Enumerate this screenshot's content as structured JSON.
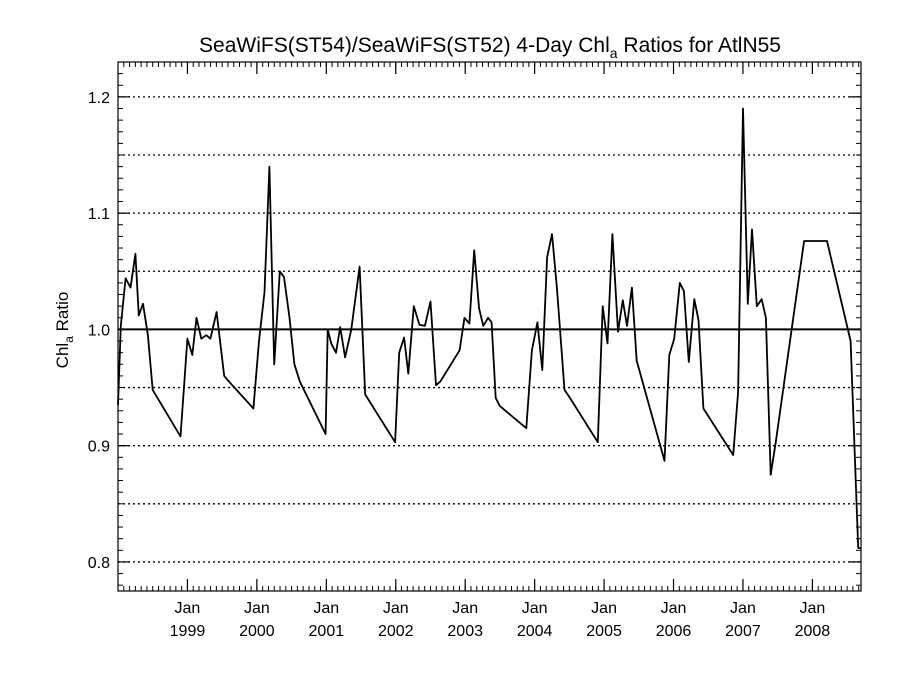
{
  "chart_data": {
    "type": "line",
    "title": {
      "before": "SeaWiFS(ST54)/SeaWiFS(ST52) 4-Day Chl",
      "subscript": "a",
      "after": " Ratios for AtlN55"
    },
    "ylabel": {
      "main": "Chl",
      "subscript": "a",
      "after": " Ratio"
    },
    "xlim": [
      1998.0,
      2008.7
    ],
    "ylim": [
      0.775,
      1.23
    ],
    "yticks": [
      {
        "value": 0.8,
        "label": "0.8"
      },
      {
        "value": 0.9,
        "label": "0.9"
      },
      {
        "value": 1.0,
        "label": "1.0"
      },
      {
        "value": 1.1,
        "label": "1.1"
      },
      {
        "value": 1.2,
        "label": "1.2"
      }
    ],
    "ygrid": [
      0.8,
      0.85,
      0.9,
      0.95,
      1.05,
      1.1,
      1.15,
      1.2
    ],
    "reference_line": 1.0,
    "xticks": [
      {
        "value": 1999.0,
        "month": "Jan",
        "year": "1999"
      },
      {
        "value": 2000.0,
        "month": "Jan",
        "year": "2000"
      },
      {
        "value": 2001.0,
        "month": "Jan",
        "year": "2001"
      },
      {
        "value": 2002.0,
        "month": "Jan",
        "year": "2002"
      },
      {
        "value": 2003.0,
        "month": "Jan",
        "year": "2003"
      },
      {
        "value": 2004.0,
        "month": "Jan",
        "year": "2004"
      },
      {
        "value": 2005.0,
        "month": "Jan",
        "year": "2005"
      },
      {
        "value": 2006.0,
        "month": "Jan",
        "year": "2006"
      },
      {
        "value": 2007.0,
        "month": "Jan",
        "year": "2007"
      },
      {
        "value": 2008.0,
        "month": "Jan",
        "year": "2008"
      }
    ],
    "grid": "horizontal dotted",
    "series": [
      {
        "x": [
          1998.0,
          1998.04,
          1998.11,
          1998.18,
          1998.25,
          1998.3,
          1998.36,
          1998.43,
          1998.5,
          1998.9,
          1999.0,
          1999.07,
          1999.13,
          1999.2,
          1999.27,
          1999.33,
          1999.42,
          1999.53,
          1999.6,
          1999.95,
          2000.03,
          2000.11,
          2000.18,
          2000.25,
          2000.33,
          2000.39,
          2000.47,
          2000.54,
          2000.62,
          2000.99,
          2001.02,
          2001.07,
          2001.14,
          2001.2,
          2001.27,
          2001.36,
          2001.48,
          2001.56,
          2001.99,
          2002.05,
          2002.12,
          2002.18,
          2002.26,
          2002.34,
          2002.42,
          2002.5,
          2002.58,
          2002.64,
          2002.92,
          2002.99,
          2003.06,
          2003.13,
          2003.2,
          2003.26,
          2003.33,
          2003.38,
          2003.44,
          2003.5,
          2003.88,
          2003.96,
          2004.04,
          2004.11,
          2004.18,
          2004.25,
          2004.32,
          2004.43,
          2004.51,
          2004.91,
          2004.98,
          2005.05,
          2005.12,
          2005.2,
          2005.27,
          2005.33,
          2005.4,
          2005.47,
          2005.87,
          2005.94,
          2006.01,
          2006.09,
          2006.15,
          2006.22,
          2006.3,
          2006.36,
          2006.43,
          2006.86,
          2006.93,
          2007.0,
          2007.07,
          2007.13,
          2007.2,
          2007.27,
          2007.33,
          2007.4,
          2007.47,
          2007.88,
          2008.04,
          2008.21,
          2008.55,
          2008.66,
          2008.7
        ],
        "y": [
          0.935,
          1.003,
          1.044,
          1.036,
          1.065,
          1.012,
          1.022,
          0.995,
          0.948,
          0.908,
          0.992,
          0.978,
          1.01,
          0.992,
          0.995,
          0.992,
          1.015,
          0.96,
          0.955,
          0.932,
          0.99,
          1.032,
          1.14,
          0.97,
          1.05,
          1.045,
          1.01,
          0.97,
          0.955,
          0.91,
          1.0,
          0.988,
          0.98,
          1.002,
          0.976,
          1.0,
          1.054,
          0.944,
          0.903,
          0.98,
          0.993,
          0.962,
          1.02,
          1.004,
          1.003,
          1.024,
          0.952,
          0.955,
          0.982,
          1.01,
          1.005,
          1.068,
          1.018,
          1.003,
          1.01,
          1.006,
          0.941,
          0.934,
          0.915,
          0.982,
          1.006,
          0.965,
          1.062,
          1.082,
          1.036,
          0.948,
          0.941,
          0.903,
          1.02,
          0.988,
          1.082,
          0.998,
          1.025,
          1.003,
          1.036,
          0.973,
          0.887,
          0.978,
          0.992,
          1.04,
          1.033,
          0.972,
          1.026,
          1.008,
          0.932,
          0.892,
          0.946,
          1.19,
          1.022,
          1.086,
          1.02,
          1.026,
          1.01,
          0.875,
          0.902,
          1.076,
          1.076,
          1.076,
          0.99,
          0.812,
          0.812
        ]
      }
    ]
  }
}
